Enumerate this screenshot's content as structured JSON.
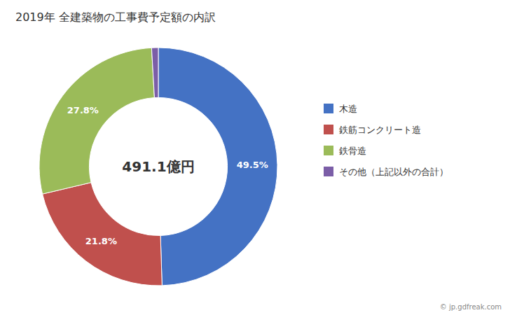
{
  "chart_data": {
    "type": "pie",
    "title": "2019年 全建築物の工事費予定額の内訳",
    "categories": [
      "木造",
      "鉄筋コンクリート造",
      "鉄骨造",
      "その他（上記以外の合計）"
    ],
    "values": [
      49.5,
      21.8,
      27.8,
      0.9
    ],
    "value_labels": [
      "49.5%",
      "21.8%",
      "27.8%",
      null
    ],
    "data_labels": true,
    "colors": [
      "#4472C4",
      "#C0504D",
      "#9BBB59",
      "#7B5EA7"
    ],
    "legend": "right",
    "annotations": [
      "491.1億円",
      "© jp.gdfreak.com"
    ]
  }
}
